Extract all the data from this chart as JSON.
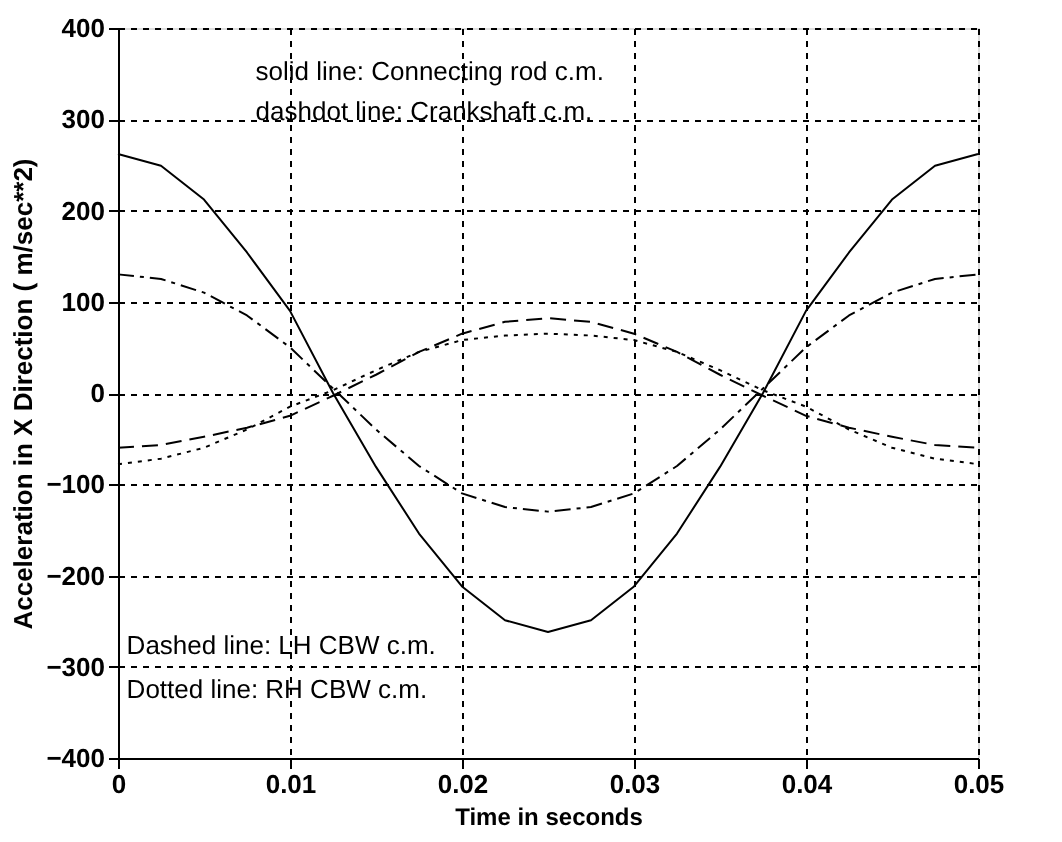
{
  "chart_data": {
    "type": "line",
    "xlabel": "Time in seconds",
    "ylabel": "Acceleration in X Direction  ( m/sec**2)",
    "x": [
      0,
      0.0025,
      0.005,
      0.0075,
      0.01,
      0.0125,
      0.015,
      0.0175,
      0.02,
      0.0225,
      0.025,
      0.0275,
      0.03,
      0.0325,
      0.035,
      0.0375,
      0.04,
      0.0425,
      0.045,
      0.0475,
      0.05
    ],
    "series": [
      {
        "color": "#000000",
        "line_style": "solid",
        "values": [
          262,
          249,
          212,
          154,
          90,
          0,
          -81,
          -154,
          -212,
          -249,
          -262,
          -249,
          -212,
          -154,
          -81,
          0,
          90,
          154,
          212,
          249,
          262
        ]
      },
      {
        "color": "#000000",
        "line_style": "dashdot",
        "values": [
          130,
          125,
          110,
          85,
          50,
          5,
          -40,
          -80,
          -110,
          -125,
          -130,
          -125,
          -110,
          -80,
          -40,
          5,
          50,
          85,
          110,
          125,
          130
        ]
      },
      {
        "color": "#000000",
        "line_style": "dashed",
        "values": [
          -60,
          -57,
          -48,
          -38,
          -25,
          -3,
          20,
          45,
          65,
          78,
          82,
          78,
          65,
          45,
          20,
          -3,
          -25,
          -38,
          -48,
          -57,
          -60
        ]
      },
      {
        "color": "#000000",
        "line_style": "dotted",
        "values": [
          -78,
          -72,
          -60,
          -40,
          -15,
          3,
          25,
          45,
          58,
          63,
          65,
          63,
          58,
          45,
          25,
          3,
          -15,
          -40,
          -60,
          -72,
          -78
        ]
      }
    ],
    "xlim": [
      0,
      0.05
    ],
    "xticks": [
      0,
      0.01,
      0.02,
      0.03,
      0.04,
      0.05
    ],
    "ylim": [
      -400,
      400
    ],
    "yticks": [
      -400,
      -300,
      -200,
      -100,
      0,
      100,
      200,
      300,
      400
    ],
    "grid": true,
    "annotations": [
      "solid line: Connecting rod c.m.",
      "dashdot line: Crankshaft c.m.",
      "Dashed line: LH CBW c.m.",
      "Dotted line: RH CBW c.m."
    ]
  }
}
